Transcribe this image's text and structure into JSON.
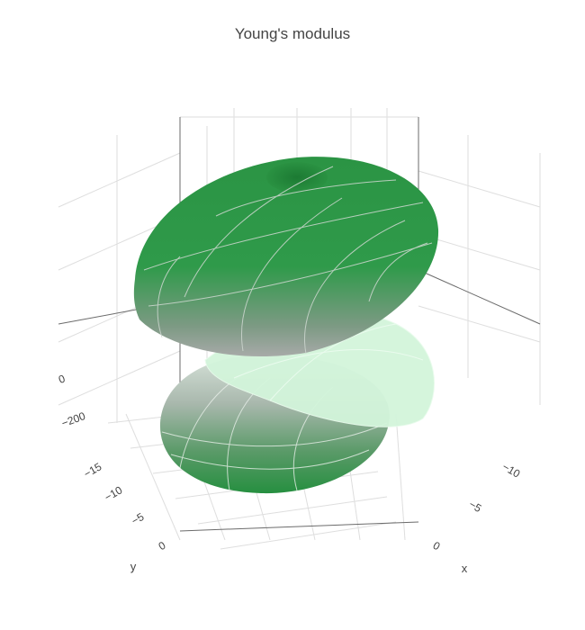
{
  "chart_data": {
    "type": "surface3d",
    "title": "Young's modulus",
    "axes": {
      "x": {
        "title": "x",
        "ticks": [
          0,
          -5,
          -10
        ],
        "tick_labels": [
          "0",
          "−5",
          "−10"
        ]
      },
      "y": {
        "title": "y",
        "ticks": [
          0,
          -5,
          -10,
          -15
        ],
        "tick_labels": [
          "0",
          "−5",
          "−10",
          "−15"
        ]
      },
      "z": {
        "title": "",
        "ticks": [
          0,
          -200
        ],
        "tick_labels": [
          "0",
          "−200"
        ]
      }
    },
    "surfaces": [
      {
        "shape": "ellipsoid",
        "part": "upper",
        "color_top": "#2e9a48",
        "color_bottom": "#9aa59d"
      },
      {
        "shape": "ellipsoid",
        "part": "lower",
        "color_top": "#c8d6cc",
        "color_bottom": "#2c9345"
      },
      {
        "shape": "sheet",
        "part": "middle",
        "color": "#d2f5da"
      }
    ],
    "grid": true,
    "legend": "none",
    "colors": {
      "grid": "#dddddd",
      "axis": "#555555",
      "text": "#444444"
    }
  }
}
